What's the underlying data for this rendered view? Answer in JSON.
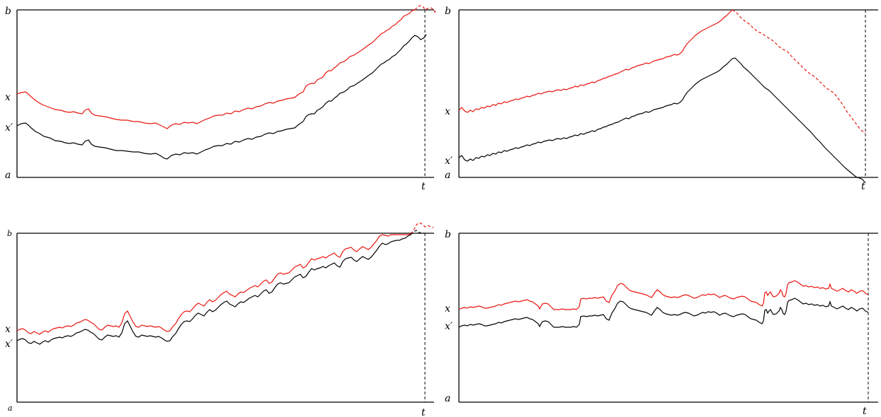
{
  "colors": {
    "x_path": "#e8150e",
    "xprime_path": "#000000",
    "axis": "#000000"
  },
  "panels": [
    {
      "labels": {
        "b": "b",
        "x": "x",
        "xprime": "x′",
        "a": "a",
        "t": "t"
      },
      "red_dashed_tail": true,
      "black_dashed_tail": false
    },
    {
      "labels": {
        "b": "b",
        "x": "x",
        "xprime": "x′",
        "a": "a",
        "t": "t"
      },
      "red_dashed_tail": true,
      "black_dashed_tail": false
    },
    {
      "labels": {
        "b": "b",
        "x": "x",
        "xprime": "x′",
        "a": "a",
        "t": "t"
      },
      "red_dashed_tail": true,
      "black_dashed_tail": true
    },
    {
      "labels": {
        "b": "b",
        "x": "x",
        "xprime": "x′",
        "a": "a",
        "t": "t"
      },
      "red_dashed_tail": false,
      "black_dashed_tail": false
    }
  ]
}
